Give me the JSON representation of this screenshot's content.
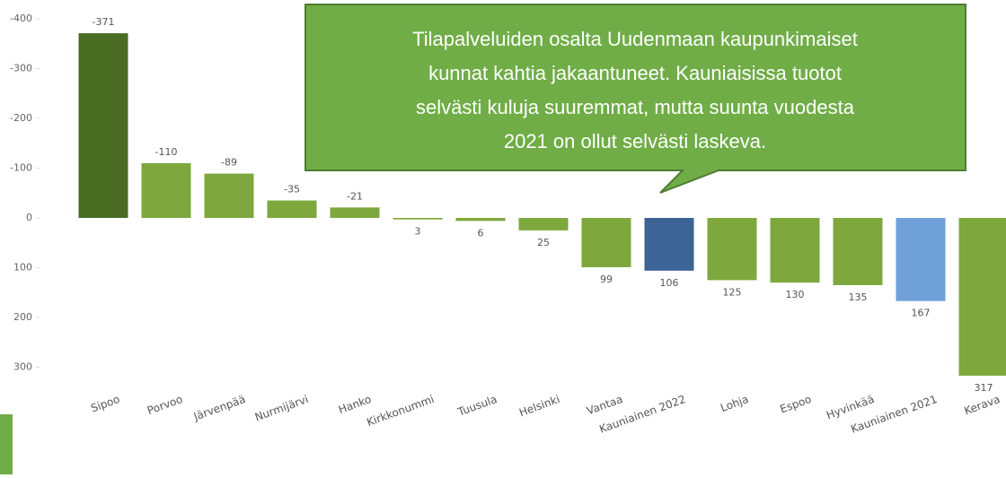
{
  "chart_data": {
    "type": "bar",
    "categories": [
      "Sipoo",
      "Porvoo",
      "Järvenpää",
      "Nurmijärvi",
      "Hanko",
      "Kirkkonummi",
      "Tuusula",
      "Helsinki",
      "Vantaa",
      "Kauniainen 2022",
      "Lohja",
      "Espoo",
      "Hyvinkää",
      "Kauniainen 2021",
      "Kerava"
    ],
    "values": [
      -371,
      -110,
      -89,
      -35,
      -21,
      3,
      6,
      25,
      99,
      106,
      125,
      130,
      135,
      167,
      317
    ],
    "colors": [
      "#4a6b22",
      "#7ea83e",
      "#7ea83e",
      "#7ea83e",
      "#7ea83e",
      "#7ea83e",
      "#7ea83e",
      "#7ea83e",
      "#7ea83e",
      "#3d6496",
      "#7ea83e",
      "#7ea83e",
      "#7ea83e",
      "#6fa0d8",
      "#7ea83e"
    ],
    "ylim": [
      -400,
      320
    ],
    "inverted": true,
    "yticks": [
      -400,
      -300,
      -200,
      -100,
      0,
      100,
      200,
      300
    ],
    "annotation": [
      "Tilapalveluiden osalta Uudenmaan kaupunkimaiset",
      "kunnat kahtia jakaantuneet. Kauniaisissa tuotot",
      "selvästi kuluja suuremmat, mutta suunta vuodesta",
      "2021 on ollut selvästi laskeva."
    ]
  }
}
